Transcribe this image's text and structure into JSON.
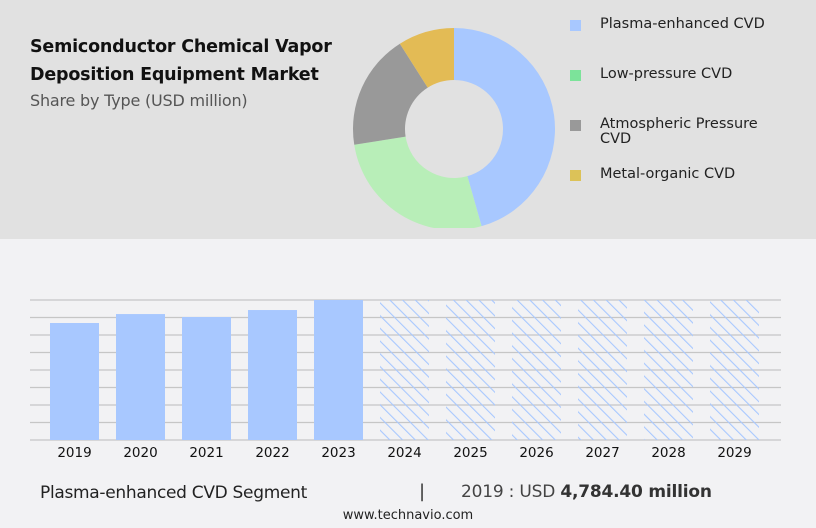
{
  "header": {
    "title_line1": "Semiconductor Chemical Vapor",
    "title_line2": "Deposition Equipment Market",
    "subtitle": "Share by Type (USD million)"
  },
  "legend": [
    {
      "label": "Plasma-enhanced CVD",
      "color": "#a8c8ff"
    },
    {
      "label": "Low-pressure CVD",
      "color": "#7ce39a"
    },
    {
      "label": "Atmospheric Pressure CVD",
      "color": "#999999"
    },
    {
      "label": "Metal-organic CVD",
      "color": "#dcc258"
    }
  ],
  "footer": {
    "segment": "Plasma-enhanced CVD Segment",
    "separator": "|",
    "year_prefix": "2019 : USD ",
    "value": "4,784.40 million",
    "url": "www.technavio.com"
  },
  "chart_data": [
    {
      "type": "pie",
      "title": "Share by Type (USD million)",
      "donut": true,
      "categories": [
        "Plasma-enhanced CVD",
        "Low-pressure CVD",
        "Atmospheric Pressure CVD",
        "Metal-organic CVD"
      ],
      "values": [
        45.6,
        26.9,
        18.5,
        9.0
      ],
      "colors": [
        "#a8c8ff",
        "#b8eeb8",
        "#999999",
        "#e3bb55"
      ],
      "legend_position": "right"
    },
    {
      "type": "bar",
      "title": "Plasma-enhanced CVD Segment",
      "categories": [
        "2019",
        "2020",
        "2021",
        "2022",
        "2023",
        "2024",
        "2025",
        "2026",
        "2027",
        "2028",
        "2029"
      ],
      "values": [
        4784.4,
        5150,
        5030,
        5315,
        5725,
        null,
        null,
        null,
        null,
        null,
        null
      ],
      "forecast": [
        false,
        false,
        false,
        false,
        false,
        true,
        true,
        true,
        true,
        true,
        true
      ],
      "bar_color": "#a8c8ff",
      "grid": true,
      "ylim": [
        0,
        5725
      ],
      "xlabel": "",
      "ylabel": ""
    }
  ]
}
